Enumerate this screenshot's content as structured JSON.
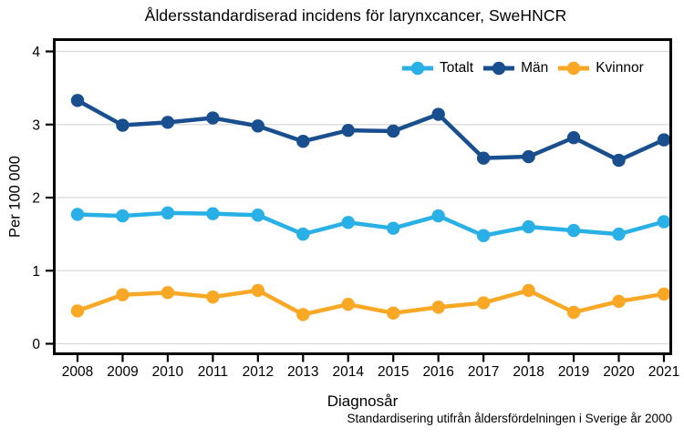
{
  "chart_data": {
    "type": "line",
    "title": "Åldersstandardiserad incidens för larynxcancer, SweHNCR",
    "xlabel": "Diagnosår",
    "ylabel": "Per 100 000",
    "footnote": "Standardisering utifrån åldersfördelningen i Sverige år 2000",
    "x": [
      "2008",
      "2009",
      "2010",
      "2011",
      "2012",
      "2013",
      "2014",
      "2015",
      "2016",
      "2017",
      "2018",
      "2019",
      "2020",
      "2021"
    ],
    "yticks": [
      0,
      1,
      2,
      3,
      4
    ],
    "ylim": [
      0,
      4
    ],
    "grid": "horizontal",
    "grid_color": "#d9d9d9",
    "axis_color": "#000000",
    "legend_position": "top-right-inside",
    "series": [
      {
        "name": "Totalt",
        "color": "#29b0e6",
        "values": [
          1.77,
          1.75,
          1.79,
          1.78,
          1.76,
          1.5,
          1.66,
          1.58,
          1.75,
          1.48,
          1.6,
          1.55,
          1.5,
          1.67
        ]
      },
      {
        "name": "Män",
        "color": "#1a4f8f",
        "values": [
          3.33,
          2.99,
          3.03,
          3.09,
          2.98,
          2.77,
          2.92,
          2.91,
          3.14,
          2.54,
          2.56,
          2.82,
          2.51,
          2.79
        ]
      },
      {
        "name": "Kvinnor",
        "color": "#f9a825",
        "values": [
          0.45,
          0.67,
          0.7,
          0.64,
          0.73,
          0.4,
          0.54,
          0.42,
          0.5,
          0.56,
          0.73,
          0.43,
          0.58,
          0.68
        ]
      }
    ]
  }
}
